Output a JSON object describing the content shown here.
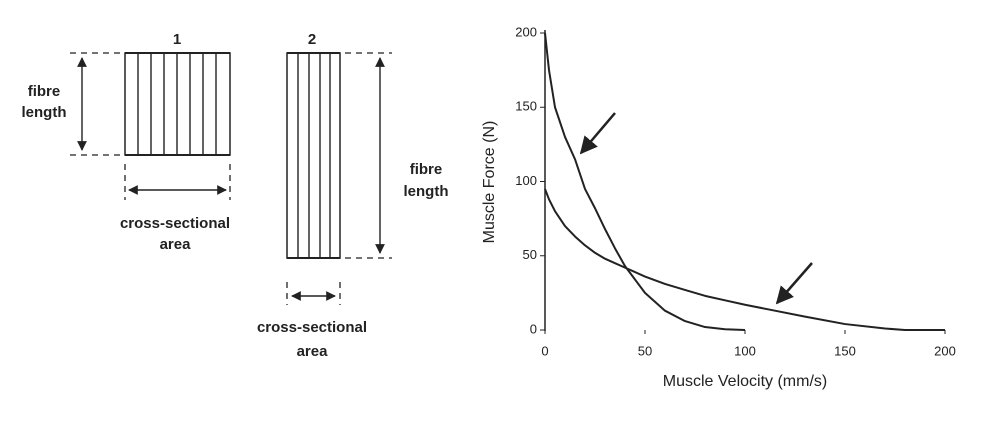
{
  "diagram": {
    "muscle_1": {
      "label": "1",
      "fibre_length": [
        "fibre",
        "length"
      ],
      "area": [
        "cross-sectional",
        "area"
      ]
    },
    "muscle_2": {
      "label": "2",
      "fibre_length": [
        "fibre",
        "length"
      ],
      "area": [
        "cross-sectional",
        "area"
      ]
    }
  },
  "chart_data": {
    "type": "line",
    "xlabel": "Muscle Velocity (mm/s)",
    "ylabel": "Muscle Force (N)",
    "x": [
      0,
      2,
      5,
      10,
      15,
      20,
      25,
      30,
      35,
      40,
      50,
      60,
      70,
      80,
      90,
      100,
      115,
      130,
      150,
      170,
      180,
      200
    ],
    "series": [
      {
        "color": "#222222",
        "values": [
          200,
          175,
          150,
          130,
          115,
          95,
          82,
          68,
          55,
          43,
          25,
          13,
          6,
          2,
          0.5,
          0,
          null,
          null,
          null,
          null,
          null,
          null
        ]
      },
      {
        "color": "#222222",
        "values": [
          95,
          88,
          80,
          70,
          63,
          57,
          52,
          48,
          45,
          42,
          36,
          31,
          27,
          23,
          20,
          17,
          13,
          9,
          4,
          1,
          0,
          0
        ]
      }
    ],
    "xlim": [
      0,
      200
    ],
    "xticks": [
      0,
      50,
      100,
      150,
      200
    ],
    "ylim": [
      0,
      200
    ],
    "yticks": [
      0,
      50,
      100,
      150,
      200
    ]
  }
}
